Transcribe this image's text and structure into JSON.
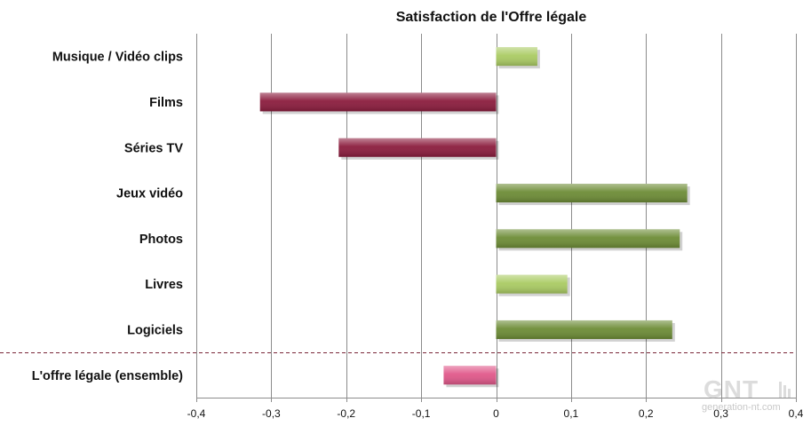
{
  "chart_data": {
    "type": "bar",
    "orientation": "horizontal",
    "title": "Satisfaction de l'Offre légale",
    "categories": [
      "Musique / Vidéo clips",
      "Films",
      "Séries TV",
      "Jeux vidéo",
      "Photos",
      "Livres",
      "Logiciels",
      "L'offre légale (ensemble)"
    ],
    "values": [
      0.055,
      -0.315,
      -0.21,
      0.255,
      0.245,
      0.095,
      0.235,
      -0.07
    ],
    "bar_colors": [
      "#aacb63",
      "#8b1c3d",
      "#8b1c3d",
      "#6d8c36",
      "#6d8c36",
      "#aacb63",
      "#6d8c36",
      "#e0588a"
    ],
    "xlim": [
      -0.4,
      0.4
    ],
    "x_ticks": [
      -0.4,
      -0.3,
      -0.2,
      -0.1,
      0,
      0.1,
      0.2,
      0.3,
      0.4
    ],
    "x_tick_labels": [
      "-0,4",
      "-0,3",
      "-0,2",
      "-0,1",
      "0",
      "0,1",
      "0,2",
      "0,3",
      "0,4"
    ],
    "grid": "vertical",
    "separator_before_category": "L'offre légale (ensemble)"
  },
  "watermark": {
    "brand": "GNT",
    "site": "generation-nt.com"
  }
}
